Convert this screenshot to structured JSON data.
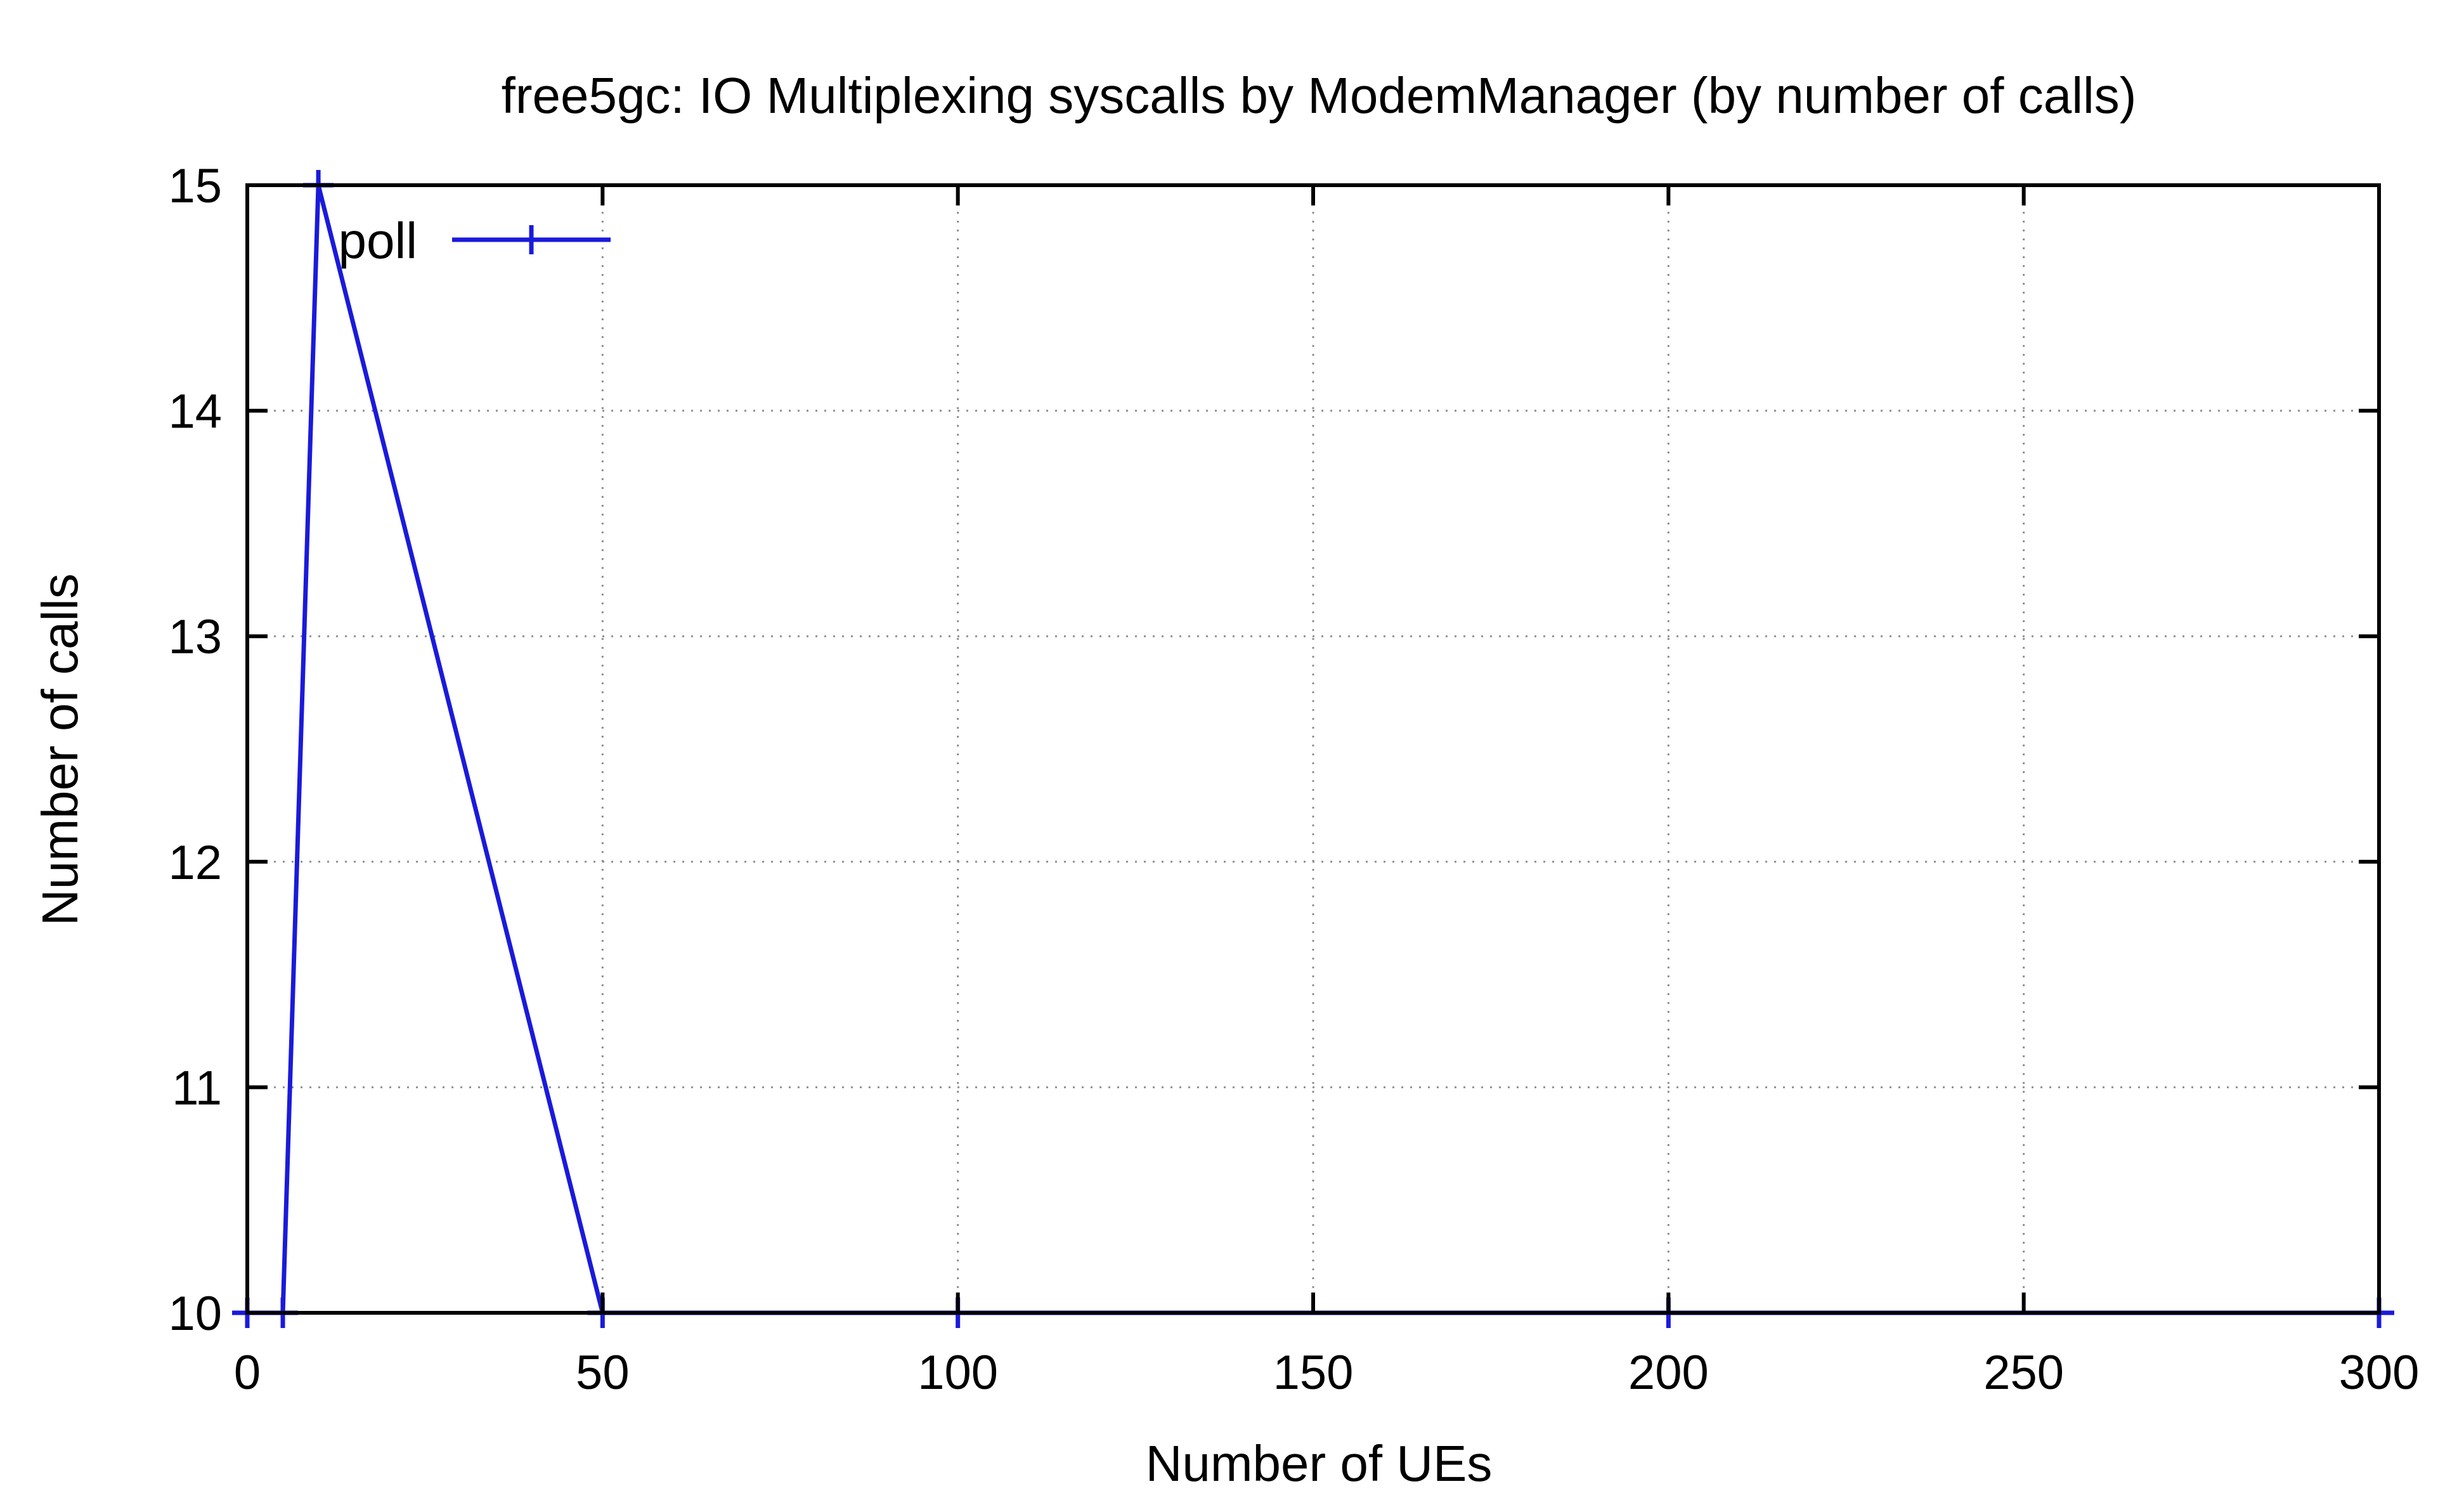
{
  "chart_data": {
    "type": "line",
    "title": "free5gc: IO Multiplexing syscalls by ModemManager (by number of calls)",
    "xlabel": "Number of UEs",
    "ylabel": "Number of calls",
    "xlim": [
      0,
      300
    ],
    "ylim": [
      10,
      15
    ],
    "xticks": [
      0,
      50,
      100,
      150,
      200,
      250,
      300
    ],
    "yticks": [
      10,
      11,
      12,
      13,
      14,
      15
    ],
    "xtick_labels": [
      "0",
      "50",
      "100",
      "150",
      "200",
      "250",
      "300"
    ],
    "ytick_labels": [
      "10",
      "11",
      "12",
      "13",
      "14",
      "15"
    ],
    "grid": true,
    "legend_position": "top-left",
    "series": [
      {
        "name": "poll",
        "color": "#1a1adb",
        "marker": "plus",
        "x": [
          0,
          5,
          10,
          50,
          100,
          200,
          300
        ],
        "y": [
          10,
          10,
          15,
          10,
          10,
          10,
          10
        ]
      }
    ]
  }
}
